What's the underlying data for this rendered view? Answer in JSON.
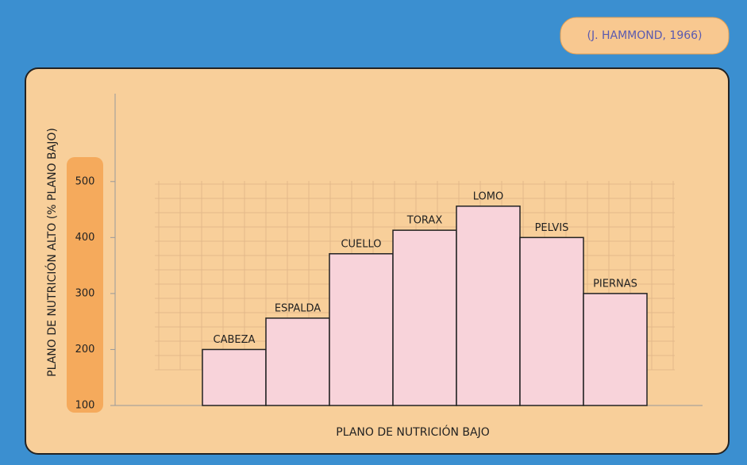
{
  "chart_data": {
    "type": "bar",
    "annotation": "(J. HAMMOND, 1966)",
    "y_label": "PLANO DE NUTRICIÓN ALTO (% PLANO BAJO)",
    "x_label": "PLANO DE NUTRICIÓN BAJO",
    "categories": [
      "CABEZA",
      "ESPALDA",
      "CUELLO",
      "TORAX",
      "LOMO",
      "PELVIS",
      "PIERNAS"
    ],
    "values": [
      200,
      256,
      371,
      413,
      456,
      400,
      300
    ],
    "color": "#f8d3da",
    "ylim": [
      100,
      657
    ],
    "yticks": [
      100,
      200,
      300,
      400,
      500
    ]
  }
}
